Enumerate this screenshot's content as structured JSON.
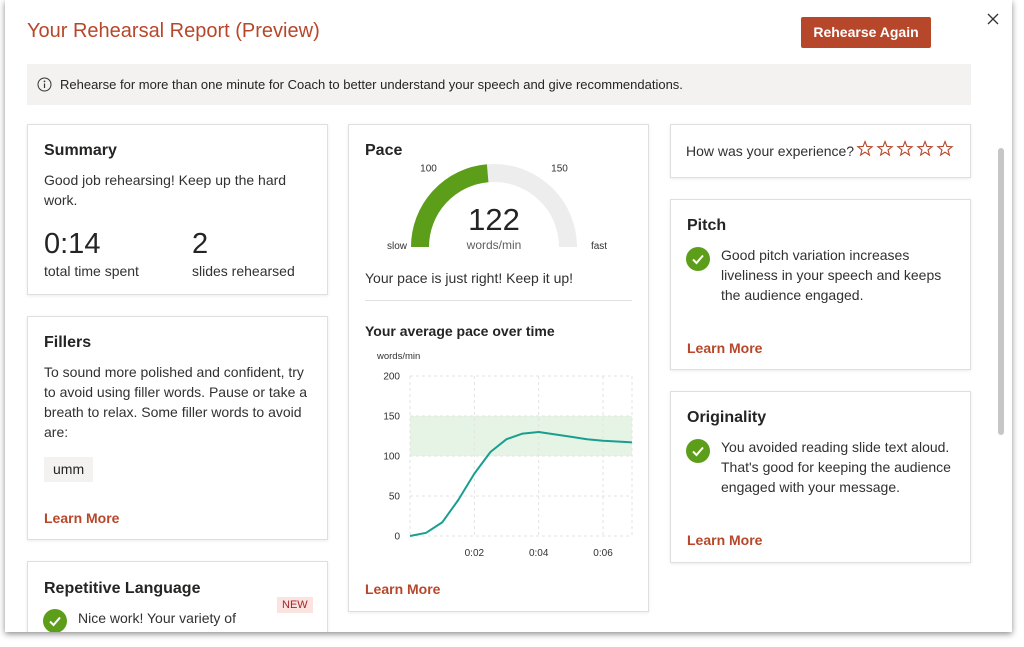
{
  "header": {
    "title": "Your Rehearsal Report (Preview)",
    "button": "Rehearse Again"
  },
  "notice": "Rehearse for more than one minute for Coach to better understand your speech and give recommendations.",
  "summary": {
    "title": "Summary",
    "text": "Good job rehearsing! Keep up the hard work.",
    "stats": [
      {
        "value": "0:14",
        "label": "total time spent"
      },
      {
        "value": "2",
        "label": "slides rehearsed"
      }
    ]
  },
  "fillers": {
    "title": "Fillers",
    "text": "To sound more polished and confident, try to avoid using filler words. Pause or take a breath to relax. Some filler words to avoid are:",
    "words": [
      "umm"
    ],
    "link": "Learn More"
  },
  "repetitive": {
    "title": "Repetitive Language",
    "badge": "NEW",
    "text": "Nice work! Your variety of"
  },
  "pace": {
    "title": "Pace",
    "gauge": {
      "value": 122,
      "unit": "words/min",
      "lim": [
        70,
        180
      ],
      "ticks": [
        100,
        150
      ],
      "min_label": "slow",
      "max_label": "fast",
      "color": "#5c9e1a"
    },
    "message": "Your pace is just right! Keep it up!",
    "link": "Learn More"
  },
  "chart_data": {
    "type": "line",
    "title": "Your average pace over time",
    "y_label": "words/min",
    "x": [
      0,
      0.5,
      1,
      1.5,
      2,
      2.5,
      3,
      3.5,
      4,
      4.5,
      5,
      5.5,
      6,
      6.5,
      6.9
    ],
    "values": [
      0,
      4,
      17,
      45,
      78,
      105,
      121,
      128,
      130,
      127,
      124,
      121,
      119,
      118,
      117
    ],
    "color": "#1a9e8f",
    "xlim": [
      0,
      6.9
    ],
    "ylim": [
      0,
      200
    ],
    "yticks": [
      0,
      50,
      100,
      150,
      200
    ],
    "xticks": [
      {
        "value": 2,
        "label": "0:02"
      },
      {
        "value": 4,
        "label": "0:04"
      },
      {
        "value": 6,
        "label": "0:06"
      }
    ],
    "band": [
      100,
      150
    ],
    "band_color": "#e5f4e5",
    "grid": true
  },
  "experience": {
    "question": "How was your experience?",
    "stars": 5
  },
  "pitch": {
    "title": "Pitch",
    "text": "Good pitch variation increases liveliness in your speech and keeps the audience engaged.",
    "link": "Learn More"
  },
  "originality": {
    "title": "Originality",
    "text": "You avoided reading slide text aloud. That's good for keeping the audience engaged with your message.",
    "link": "Learn More"
  }
}
